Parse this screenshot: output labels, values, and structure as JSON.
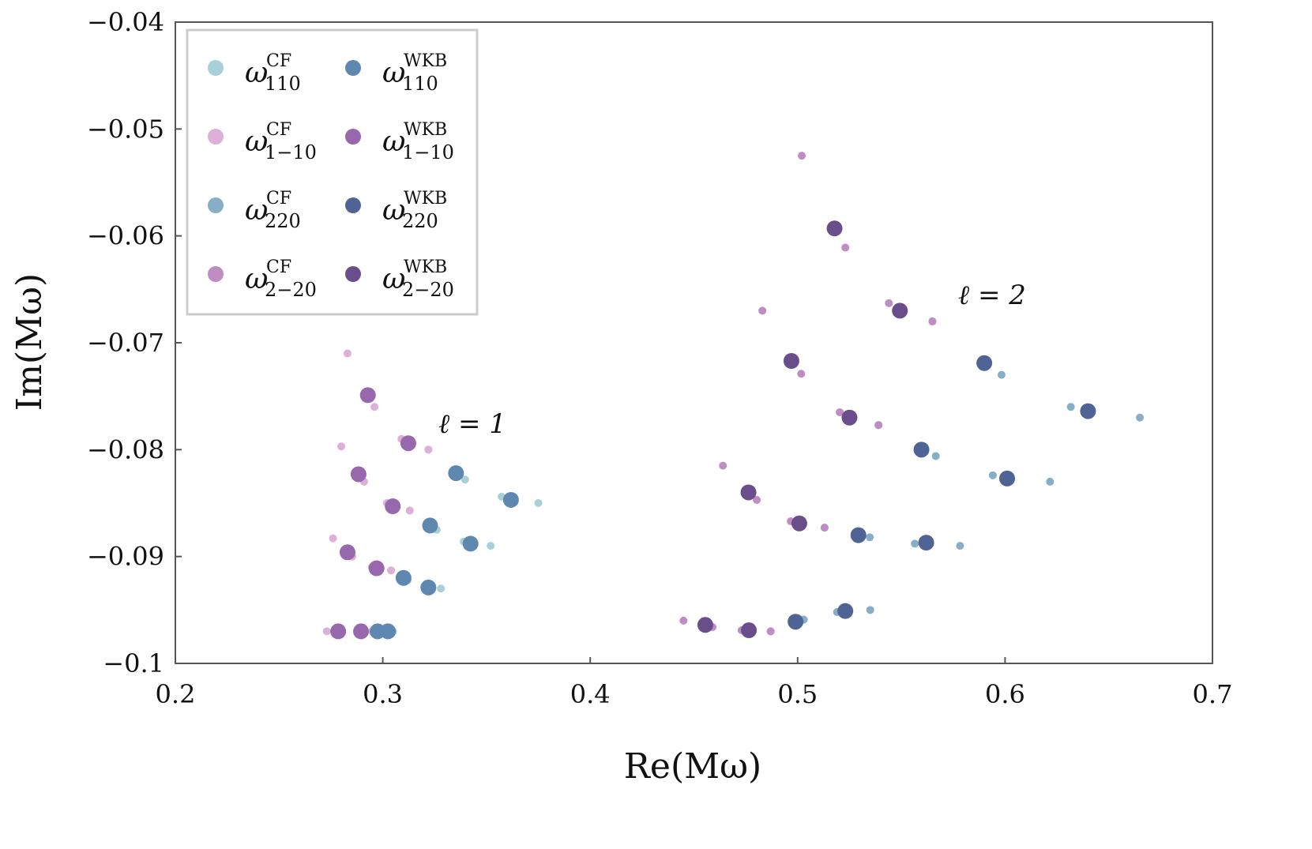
{
  "chart_data": {
    "type": "scatter",
    "xlabel": "Re(Mω)",
    "ylabel": "Im(Mω)",
    "xlim": [
      0.2,
      0.7
    ],
    "xticks": [
      0.2,
      0.3,
      0.4,
      0.5,
      0.6,
      0.7
    ],
    "ylim": [
      -0.1,
      -0.04
    ],
    "yticks": [
      {
        "value": -0.1,
        "label": "−0.1"
      },
      {
        "value": -0.09,
        "label": "−0.09"
      },
      {
        "value": -0.08,
        "label": "−0.08"
      },
      {
        "value": -0.07,
        "label": "−0.07"
      },
      {
        "value": -0.06,
        "label": "−0.06"
      },
      {
        "value": -0.05,
        "label": "−0.05"
      },
      {
        "value": -0.04,
        "label": "−0.04"
      }
    ],
    "grid": false,
    "legend": "upper left",
    "legend_columns": 2,
    "annotations": [
      "ℓ = 1",
      "ℓ = 2"
    ],
    "series": [
      {
        "name": "ω",
        "superscript": "CF",
        "subscript": "110",
        "color": "#a8d0d8",
        "marker_size": 5,
        "x": [
          0.322,
          0.3397,
          0.3573,
          0.375,
          0.313,
          0.326,
          0.339,
          0.352,
          0.304,
          0.312,
          0.32,
          0.328,
          0.295,
          0.2983,
          0.3017,
          0.305
        ],
        "y": [
          -0.08,
          -0.0828,
          -0.0844,
          -0.085,
          -0.0857,
          -0.0875,
          -0.0886,
          -0.089,
          -0.0913,
          -0.0922,
          -0.0928,
          -0.093,
          -0.097,
          -0.097,
          -0.097,
          -0.097
        ]
      },
      {
        "name": "ω",
        "superscript": "CF",
        "subscript": "1−10",
        "color": "#ddb0d8",
        "marker_size": 5,
        "x": [
          0.283,
          0.296,
          0.309,
          0.322,
          0.28,
          0.291,
          0.302,
          0.313,
          0.276,
          0.2853,
          0.2947,
          0.304,
          0.273,
          0.2803,
          0.2877,
          0.295
        ],
        "y": [
          -0.071,
          -0.076,
          -0.079,
          -0.08,
          -0.0797,
          -0.083,
          -0.085,
          -0.0857,
          -0.0883,
          -0.09,
          -0.091,
          -0.0913,
          -0.097,
          -0.097,
          -0.097,
          -0.097
        ]
      },
      {
        "name": "ω",
        "superscript": "CF",
        "subscript": "220",
        "color": "#86aec6",
        "marker_size": 5,
        "x": [
          0.565,
          0.5983,
          0.6317,
          0.665,
          0.539,
          0.5666,
          0.5941,
          0.6217,
          0.513,
          0.5348,
          0.5565,
          0.5783,
          0.487,
          0.503,
          0.519,
          0.535
        ],
        "y": [
          -0.068,
          -0.073,
          -0.076,
          -0.077,
          -0.0777,
          -0.0806,
          -0.0824,
          -0.083,
          -0.0873,
          -0.0882,
          -0.0888,
          -0.089,
          -0.097,
          -0.0959,
          -0.0952,
          -0.095
        ]
      },
      {
        "name": "ω",
        "superscript": "CF",
        "subscript": "2−20",
        "color": "#c08cc4",
        "marker_size": 5,
        "x": [
          0.502,
          0.523,
          0.544,
          0.565,
          0.483,
          0.5017,
          0.5203,
          0.539,
          0.464,
          0.4803,
          0.4967,
          0.513,
          0.445,
          0.459,
          0.473,
          0.487
        ],
        "y": [
          -0.0525,
          -0.0611,
          -0.0663,
          -0.068,
          -0.067,
          -0.0729,
          -0.0765,
          -0.0777,
          -0.0815,
          -0.0847,
          -0.0867,
          -0.0873,
          -0.096,
          -0.0966,
          -0.0969,
          -0.097
        ]
      },
      {
        "name": "ω",
        "superscript": "WKB",
        "subscript": "110",
        "color": "#5f88b0",
        "marker_size": 10,
        "x": [
          0.3353,
          0.3618,
          0.3228,
          0.3423,
          0.31,
          0.322,
          0.2975,
          0.3025
        ],
        "y": [
          -0.0822,
          -0.0847,
          -0.0871,
          -0.0888,
          -0.092,
          -0.0929,
          -0.097,
          -0.097
        ]
      },
      {
        "name": "ω",
        "superscript": "WKB",
        "subscript": "1−10",
        "color": "#9868ac",
        "marker_size": 10,
        "x": [
          0.2928,
          0.3123,
          0.2883,
          0.3048,
          0.283,
          0.297,
          0.2785,
          0.2895
        ],
        "y": [
          -0.0749,
          -0.0794,
          -0.0823,
          -0.0853,
          -0.0896,
          -0.0911,
          -0.097,
          -0.097
        ]
      },
      {
        "name": "ω",
        "superscript": "WKB",
        "subscript": "220",
        "color": "#4f6494",
        "marker_size": 10,
        "x": [
          0.59,
          0.64,
          0.5597,
          0.601,
          0.5293,
          0.562,
          0.499,
          0.523
        ],
        "y": [
          -0.0719,
          -0.0764,
          -0.08,
          -0.0827,
          -0.088,
          -0.0887,
          -0.0961,
          -0.0951
        ]
      },
      {
        "name": "ω",
        "superscript": "WKB",
        "subscript": "2−20",
        "color": "#6a4e8c",
        "marker_size": 10,
        "x": [
          0.5178,
          0.5493,
          0.497,
          0.525,
          0.4763,
          0.5008,
          0.4555,
          0.4765
        ],
        "y": [
          -0.0593,
          -0.067,
          -0.0717,
          -0.077,
          -0.084,
          -0.0869,
          -0.0964,
          -0.0969
        ]
      }
    ]
  }
}
